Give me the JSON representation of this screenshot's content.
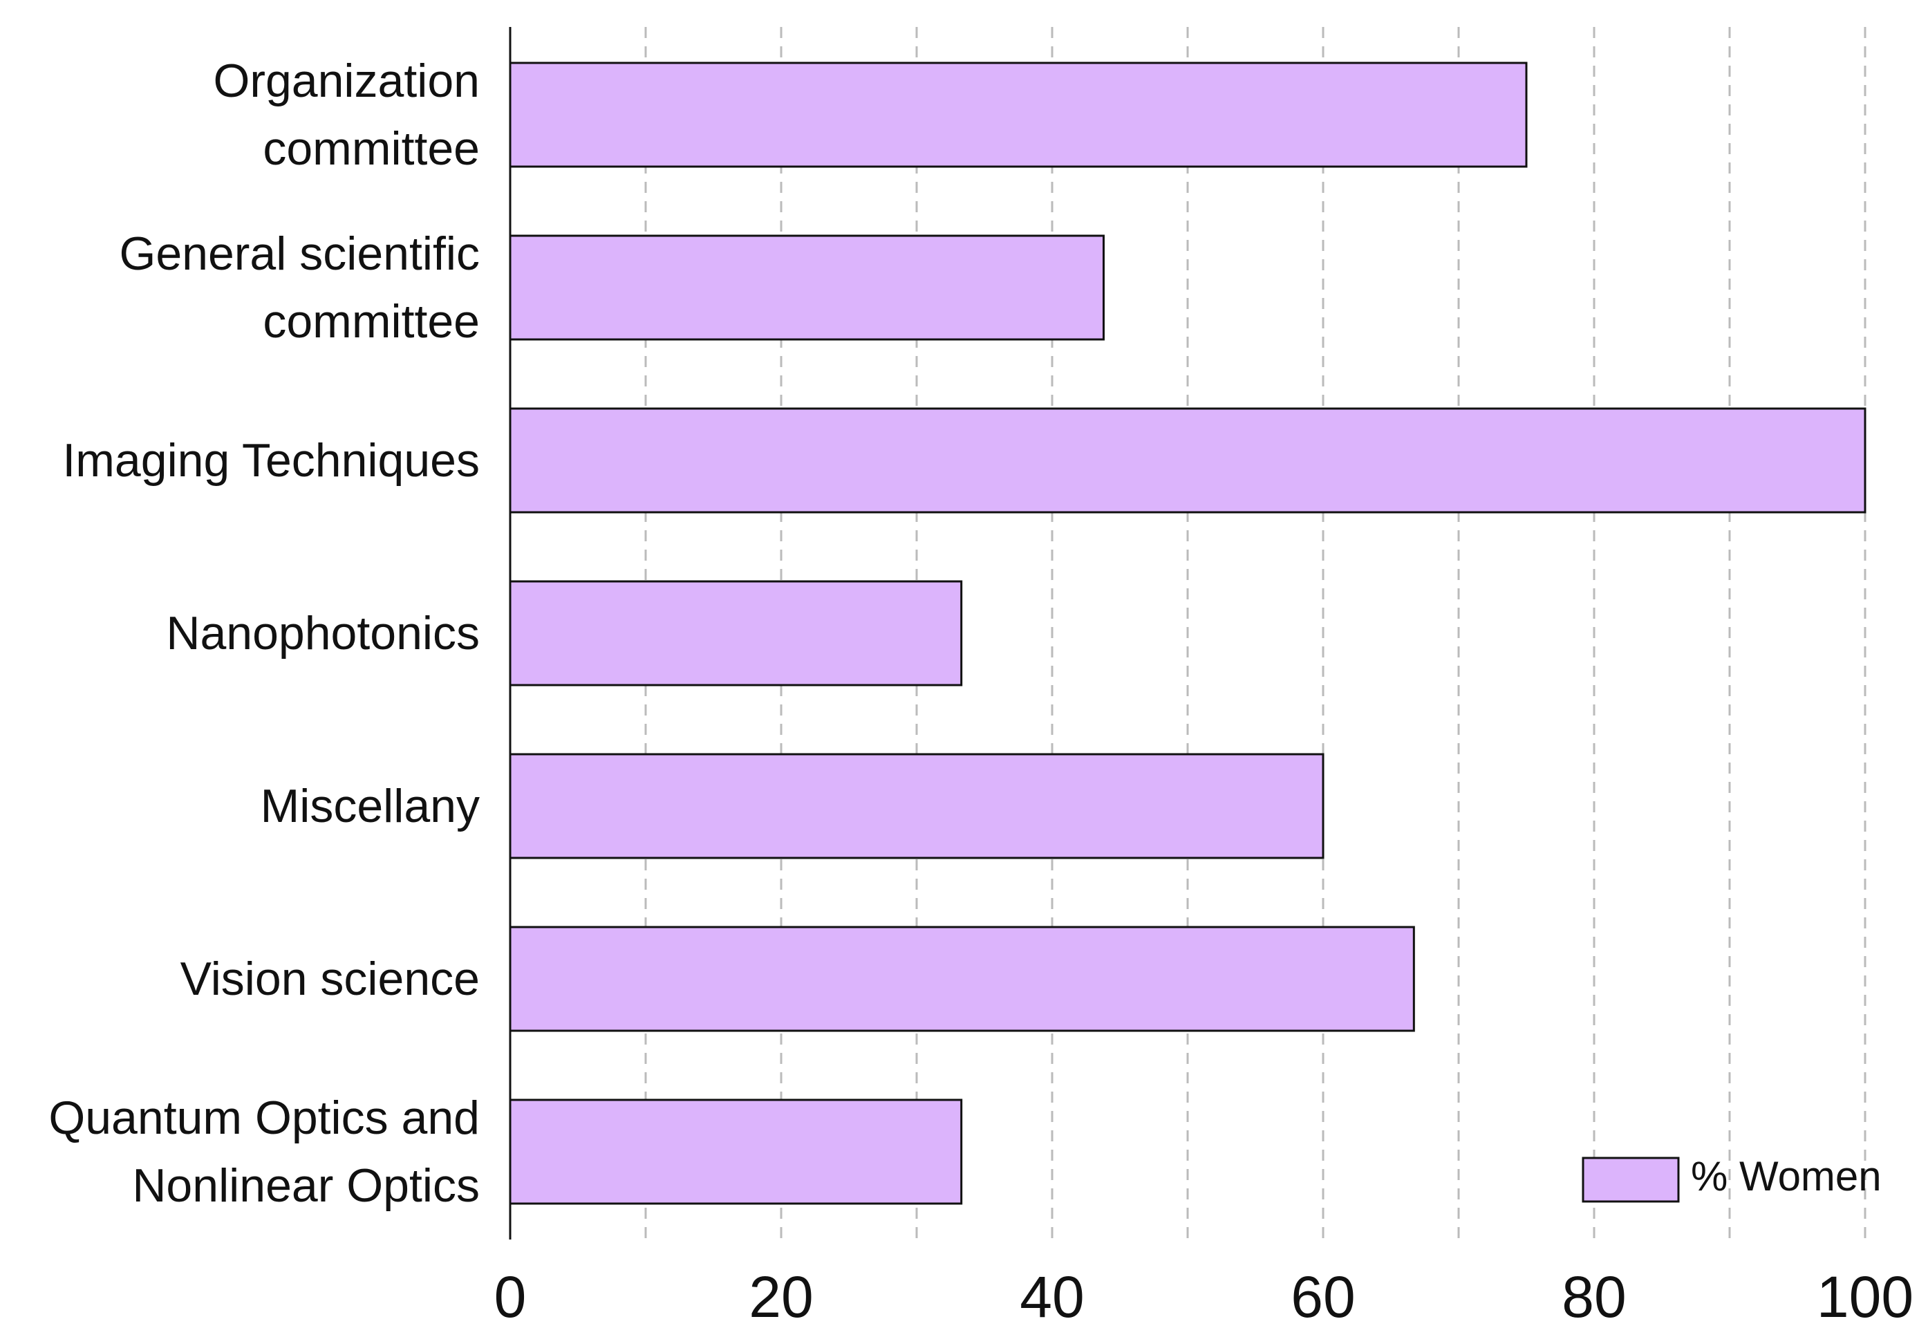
{
  "chart_data": {
    "type": "barh",
    "categories": [
      "Organization\ncommittee",
      "General scientific\ncommittee",
      "Imaging Techniques",
      "Nanophotonics",
      "Miscellany",
      "Vision science",
      "Quantum Optics and\nNonlinear Optics"
    ],
    "series": [
      {
        "name": "% Women",
        "color": "#dcb4fc",
        "values": [
          75,
          43.8,
          100,
          33.3,
          60,
          66.7,
          33.3
        ]
      }
    ],
    "xlim": [
      0,
      100
    ],
    "xticks": [
      0,
      20,
      40,
      60,
      80,
      100
    ],
    "minor_xticks": [
      10,
      30,
      50,
      70,
      90
    ],
    "grid": true,
    "legend": "lower right"
  }
}
